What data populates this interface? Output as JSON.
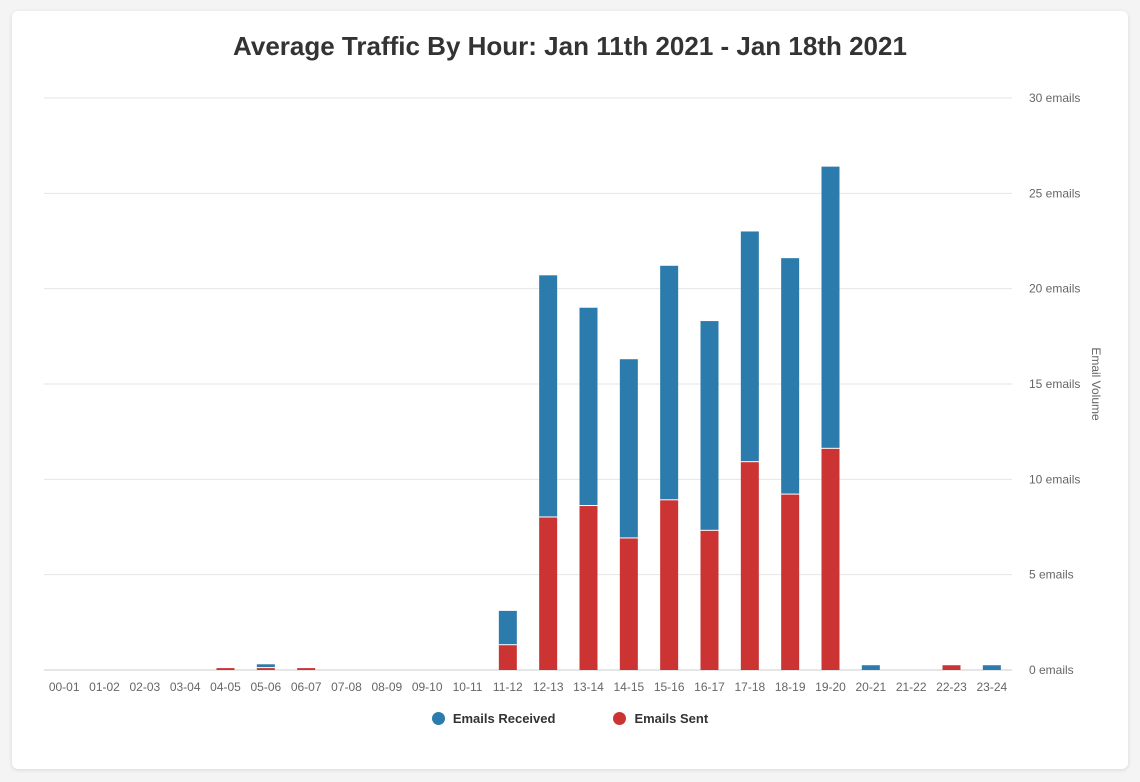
{
  "chart_data": {
    "type": "bar",
    "stacked": true,
    "title": "Average Traffic By Hour: Jan 11th 2021 - Jan 18th 2021",
    "xlabel": "",
    "ylabel": "Email Volume",
    "ylim": [
      0,
      30
    ],
    "ytick_values": [
      0,
      5,
      10,
      15,
      20,
      25,
      30
    ],
    "ytick_labels": [
      "0 emails",
      "5 emails",
      "10 emails",
      "15 emails",
      "20 emails",
      "25 emails",
      "30 emails"
    ],
    "y_axis_position": "right",
    "grid": true,
    "legend_position": "bottom",
    "categories": [
      "00-01",
      "01-02",
      "02-03",
      "03-04",
      "04-05",
      "05-06",
      "06-07",
      "07-08",
      "08-09",
      "09-10",
      "10-11",
      "11-12",
      "12-13",
      "13-14",
      "14-15",
      "15-16",
      "16-17",
      "17-18",
      "18-19",
      "19-20",
      "20-21",
      "21-22",
      "22-23",
      "23-24"
    ],
    "series": [
      {
        "name": "Emails Received",
        "color": "#2b7bad",
        "values": [
          0,
          0,
          0,
          0,
          0,
          0.2,
          0,
          0,
          0,
          0,
          0,
          1.8,
          12.7,
          10.4,
          9.4,
          12.3,
          11.0,
          12.1,
          12.4,
          14.8,
          0.25,
          0,
          0,
          0.25
        ]
      },
      {
        "name": "Emails Sent",
        "color": "#cc3333",
        "values": [
          0,
          0,
          0,
          0,
          0.1,
          0.1,
          0.1,
          0,
          0,
          0,
          0,
          1.3,
          8.0,
          8.6,
          6.9,
          8.9,
          7.3,
          10.9,
          9.2,
          11.6,
          0,
          0,
          0.25,
          0
        ]
      }
    ]
  }
}
